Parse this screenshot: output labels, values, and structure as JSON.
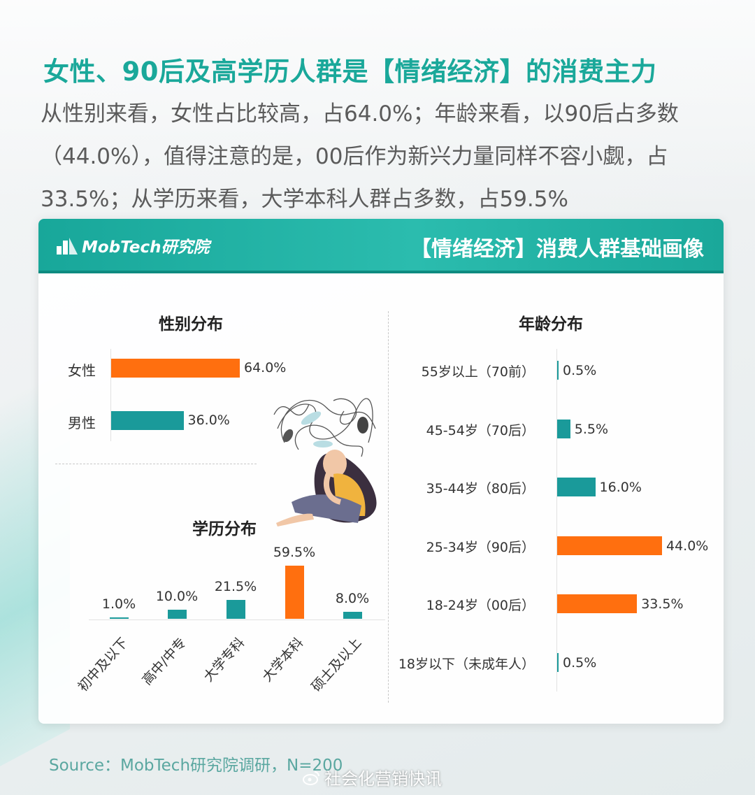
{
  "headline": "女性、90后及高学历人群是【情绪经济】的消费主力",
  "intro_lines": [
    "从性别来看，女性占比较高，占64.0%；年龄来看，以90后占多数",
    "（44.0%），值得注意的是，00后作为新兴力量同样不容小觑，占",
    "33.5%；从学历来看，大学本科人群占多数，占59.5%"
  ],
  "card": {
    "brand": "MobTech研究院",
    "title": "【情绪经济】消费人群基础画像"
  },
  "colors": {
    "orange": "#ff6f0f",
    "teal": "#1a9a9a",
    "accent": "#1aa89a"
  },
  "chart_data": [
    {
      "type": "bar",
      "orientation": "horizontal",
      "title": "性别分布",
      "categories": [
        "女性",
        "男性"
      ],
      "values": [
        64.0,
        36.0
      ],
      "value_labels": [
        "64.0%",
        "36.0%"
      ],
      "bar_colors": [
        "#ff6f0f",
        "#1a9a9a"
      ],
      "xlim": [
        0,
        100
      ],
      "grid": false
    },
    {
      "type": "bar",
      "orientation": "horizontal",
      "title": "年龄分布",
      "categories": [
        "55岁以上（70前）",
        "45-54岁（70后）",
        "35-44岁（80后）",
        "25-34岁（90后）",
        "18-24岁（00后）",
        "18岁以下（未成年人）"
      ],
      "values": [
        0.5,
        5.5,
        16.0,
        44.0,
        33.5,
        0.5
      ],
      "value_labels": [
        "0.5%",
        "5.5%",
        "16.0%",
        "44.0%",
        "33.5%",
        "0.5%"
      ],
      "bar_colors": [
        "#1a9a9a",
        "#1a9a9a",
        "#1a9a9a",
        "#ff6f0f",
        "#ff6f0f",
        "#1a9a9a"
      ],
      "xlim": [
        0,
        100
      ],
      "grid": false
    },
    {
      "type": "bar",
      "orientation": "vertical",
      "title": "学历分布",
      "categories": [
        "初中及以下",
        "高中/中专",
        "大学专科",
        "大学本科",
        "硕士及以上"
      ],
      "values": [
        1.0,
        10.0,
        21.5,
        59.5,
        8.0
      ],
      "value_labels": [
        "1.0%",
        "10.0%",
        "21.5%",
        "59.5%",
        "8.0%"
      ],
      "bar_colors": [
        "#1a9a9a",
        "#1a9a9a",
        "#1a9a9a",
        "#ff6f0f",
        "#1a9a9a"
      ],
      "ylim": [
        0,
        60
      ],
      "grid": false
    }
  ],
  "source": "Source：MobTech研究院调研，N=200",
  "watermark": "社会化营销快讯",
  "icons": {
    "brand_logo": "mobtech-logo-icon",
    "illustration": "anxious-woman-illustration",
    "watermark_logo": "weibo-icon"
  }
}
